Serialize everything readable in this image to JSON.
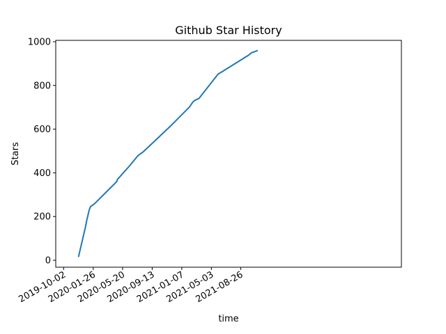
{
  "chart_data": {
    "type": "line",
    "title": "Github Star History",
    "xlabel": "time",
    "ylabel": "Stars",
    "x_tick_labels": [
      "2019-10-02",
      "2020-01-26",
      "2020-05-20",
      "2020-09-13",
      "2021-01-07",
      "2021-05-03",
      "2021-08-26"
    ],
    "y_tick_labels": [
      "0",
      "200",
      "400",
      "600",
      "800",
      "1000"
    ],
    "xlim": [
      "2019-09-01",
      "2021-12-03"
    ],
    "ylim": [
      -20,
      1000
    ],
    "grid": false,
    "series": [
      {
        "color": "#1f77b4",
        "points": [
          [
            "2019-11-29",
            15
          ],
          [
            "2019-12-26",
            150
          ],
          [
            "2019-12-31",
            180
          ],
          [
            "2020-01-10",
            230
          ],
          [
            "2020-01-15",
            245
          ],
          [
            "2020-02-01",
            260
          ],
          [
            "2020-04-27",
            360
          ],
          [
            "2020-04-30",
            370
          ],
          [
            "2020-06-15",
            430
          ],
          [
            "2020-07-20",
            480
          ],
          [
            "2020-08-10",
            497
          ],
          [
            "2020-11-20",
            610
          ],
          [
            "2021-02-05",
            700
          ],
          [
            "2021-02-20",
            725
          ],
          [
            "2021-03-01",
            733
          ],
          [
            "2021-03-15",
            740
          ],
          [
            "2021-05-20",
            838
          ],
          [
            "2021-05-30",
            853
          ],
          [
            "2021-06-10",
            860
          ],
          [
            "2021-09-25",
            938
          ],
          [
            "2021-10-08",
            950
          ],
          [
            "2021-11-01",
            960
          ]
        ]
      }
    ]
  }
}
